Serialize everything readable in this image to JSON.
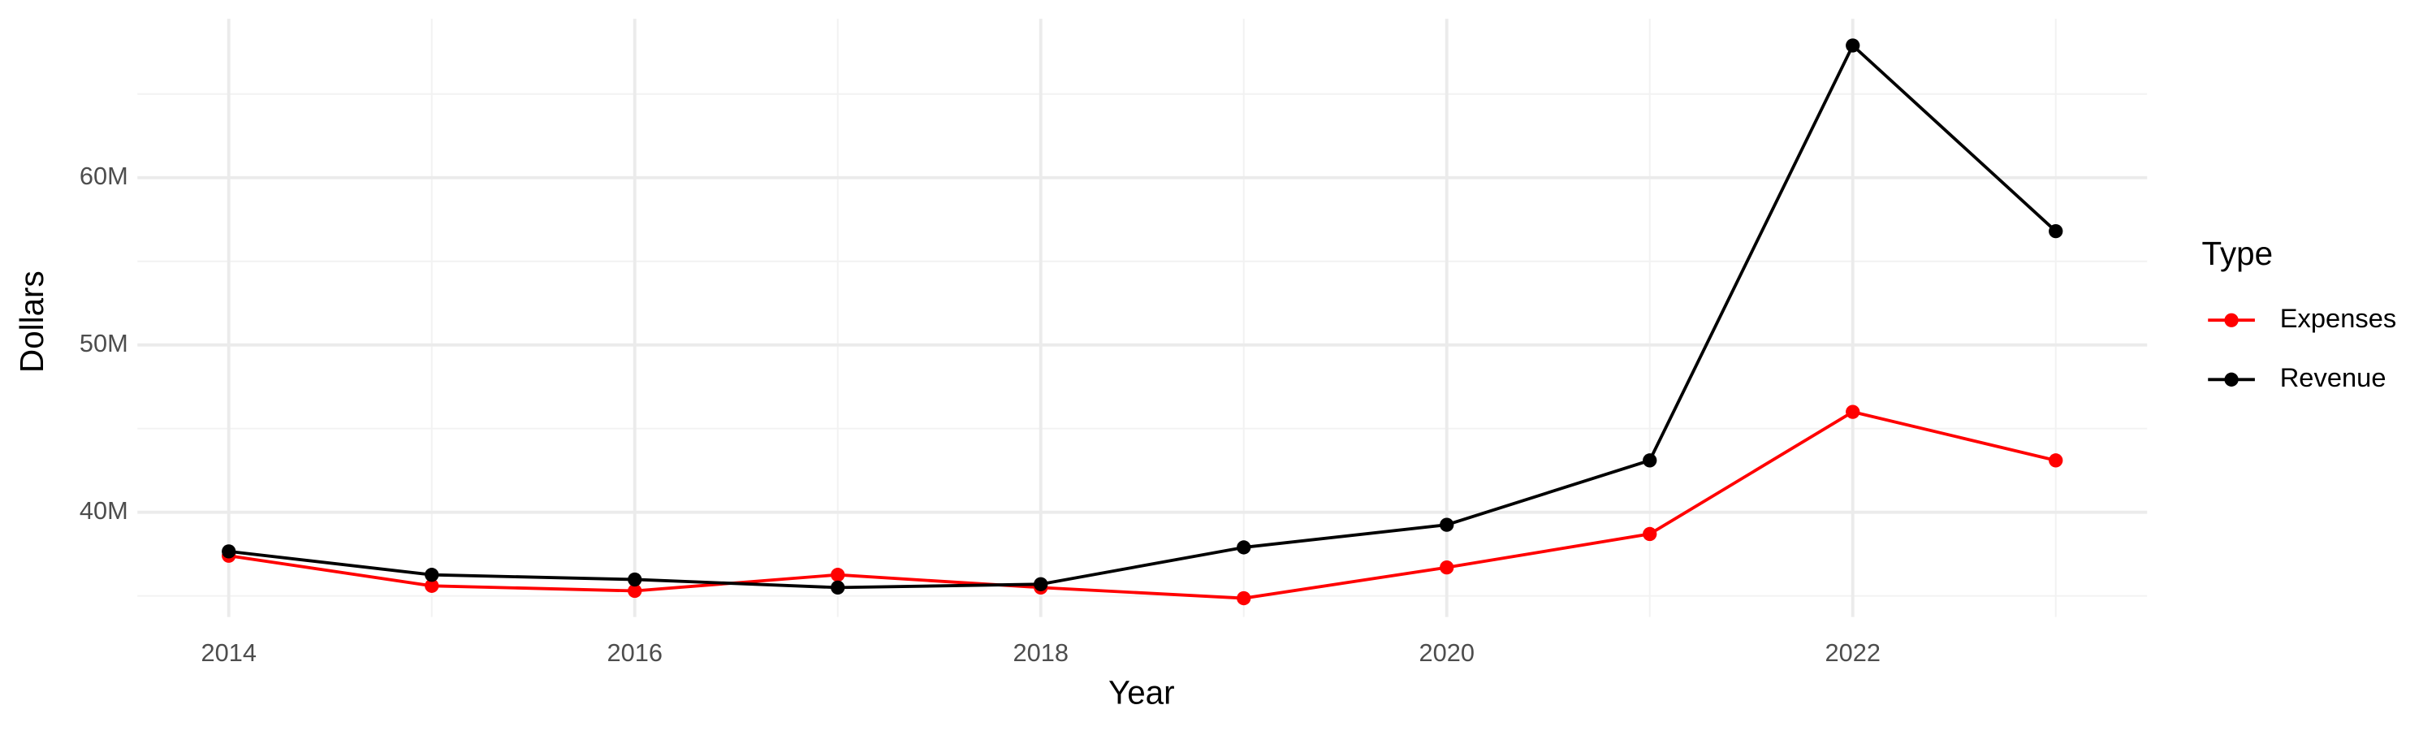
{
  "chart_data": {
    "type": "line",
    "x_label": "Year",
    "y_label": "Dollars",
    "legend_title": "Type",
    "x": [
      2014,
      2015,
      2016,
      2017,
      2018,
      2019,
      2020,
      2021,
      2022,
      2023
    ],
    "series": [
      {
        "name": "Expenses",
        "color": "#ff0000",
        "values": [
          37400000,
          35600000,
          35300000,
          36260000,
          35500000,
          34860000,
          36700000,
          38700000,
          46000000,
          43100000
        ]
      },
      {
        "name": "Revenue",
        "color": "#000000",
        "values": [
          37660000,
          36260000,
          35980000,
          35500000,
          35700000,
          37900000,
          39250000,
          43100000,
          67900000,
          56800000
        ]
      }
    ],
    "xlim": [
      2013.55,
      2023.45
    ],
    "xticks": [
      2014,
      2016,
      2018,
      2020,
      2022
    ],
    "ylim": [
      33740000,
      69500000
    ],
    "yticks": [
      {
        "value": 40000000,
        "label": "40M"
      },
      {
        "value": 50000000,
        "label": "50M"
      },
      {
        "value": 60000000,
        "label": "60M"
      }
    ],
    "grid": true,
    "legend": "right"
  }
}
